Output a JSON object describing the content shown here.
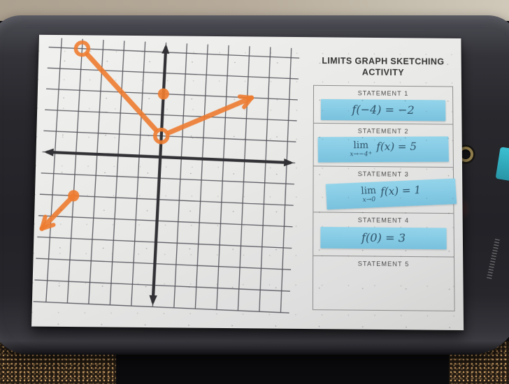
{
  "scene": {
    "wall_color": "#b6aa9a",
    "board_color": "#26262b",
    "paper_color": "#e9e9e7",
    "carpet_base": "#241b12",
    "grommet_ring_color": "#96824f",
    "side_tab_color": "#35b7c9"
  },
  "worksheet": {
    "title_line1": "LIMITS GRAPH SKETCHING",
    "title_line2": "ACTIVITY",
    "card_color": "#85cae4",
    "statements": [
      {
        "label": "STATEMENT 1",
        "card": {
          "expr": "f(−4) = −2"
        }
      },
      {
        "label": "STATEMENT 2",
        "card": {
          "lim": "lim",
          "sub": "x→−4",
          "sub_sup": "+",
          "expr": "f(x) = 5"
        }
      },
      {
        "label": "STATEMENT 3",
        "card": {
          "lim": "lim",
          "sub": "x→0",
          "sub_sup": "",
          "expr": "f(x) = 1"
        }
      },
      {
        "label": "STATEMENT 4",
        "card": {
          "expr": "f(0) = 3"
        }
      },
      {
        "label": "STATEMENT 5",
        "card": null
      }
    ]
  },
  "graph": {
    "type": "piecewise-function-sketch",
    "x_range": [
      -5,
      6
    ],
    "y_range": [
      -7,
      5.4
    ],
    "grid_step": 1,
    "colors": {
      "marker": "#ee7c30",
      "grid": "#52525a",
      "axis": "#323236"
    },
    "features": [
      {
        "kind": "ray",
        "from": [
          -4,
          -2
        ],
        "to": [
          -5.4,
          -3.6
        ],
        "from_endpoint": "closed",
        "arrow": true
      },
      {
        "kind": "segment",
        "from": [
          -4,
          5
        ],
        "to": [
          0,
          1
        ],
        "from_endpoint": "open",
        "to_endpoint": "open"
      },
      {
        "kind": "ray",
        "from": [
          0,
          1
        ],
        "to": [
          4.2,
          3.0
        ],
        "from_endpoint": "gap",
        "arrow": true
      },
      {
        "kind": "point",
        "at": [
          0,
          3
        ]
      }
    ]
  }
}
